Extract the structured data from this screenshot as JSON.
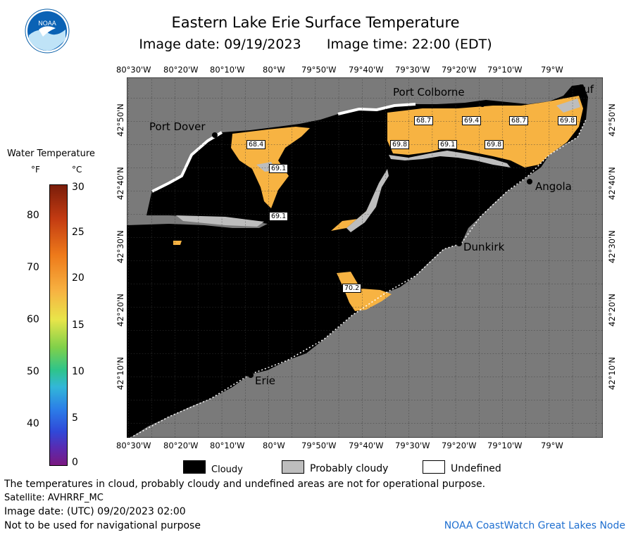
{
  "header": {
    "title": "Eastern Lake Erie Surface Temperature",
    "image_date_label": "Image date: 09/19/2023",
    "image_time_label": "Image time: 22:00 (EDT)",
    "logo_text": "NOAA"
  },
  "map": {
    "lon_labels_top": [
      "80°30'W",
      "80°20'W",
      "80°10'W",
      "80°W",
      "79°50'W",
      "79°40'W",
      "79°30'W",
      "79°20'W",
      "79°10'W",
      "79°W"
    ],
    "lon_labels_bottom": [
      "80°30'W",
      "80°20'W",
      "80°10'W",
      "80°W",
      "79°50'W",
      "79°40'W",
      "79°30'W",
      "79°20'W",
      "79°10'W",
      "79°W"
    ],
    "lat_labels_left": [
      "42°50'N",
      "42°40'N",
      "42°30'N",
      "42°20'N",
      "42°10'N"
    ],
    "lat_labels_right": [
      "42°50'N",
      "42°40'N",
      "42°30'N",
      "42°20'N",
      "42°10'N"
    ],
    "places": [
      {
        "name": "Port Colborne"
      },
      {
        "name": "Port Dover"
      },
      {
        "name": "Buf"
      },
      {
        "name": "Angola"
      },
      {
        "name": "Dunkirk"
      },
      {
        "name": "Erie"
      }
    ],
    "temps": [
      "68.7",
      "69.4",
      "68.7",
      "69.8",
      "68.4",
      "69.8",
      "69.1",
      "69.8",
      "69.1",
      "69.1",
      "70.2"
    ],
    "colors": {
      "land": "#7a7a7a",
      "cloud": "#000000",
      "water_warm": "#f7b342",
      "probably_cloudy": "#bdbdbd",
      "undefined": "#ffffff"
    }
  },
  "legend": {
    "title": "Water Temperature",
    "unit_f": "°F",
    "unit_c": "°C",
    "f_ticks": [
      "80",
      "70",
      "60",
      "50",
      "40"
    ],
    "c_ticks": [
      "30",
      "25",
      "20",
      "15",
      "10",
      "5",
      "0"
    ],
    "f_range": [
      32,
      86
    ],
    "c_range": [
      0,
      30
    ]
  },
  "key": {
    "cloudy": "Cloudy",
    "probably_cloudy": "Probably cloudy",
    "undefined": "Undefined"
  },
  "footer": {
    "disclaimer": "The temperatures in cloud, probably cloudy and undefined areas are not for operational purpose.",
    "satellite": "Satellite: AVHRRF_MC",
    "utc_date": "Image date: (UTC) 09/20/2023  02:00",
    "nav_warning": "Not to be used for navigational purpose",
    "credit": "NOAA CoastWatch Great Lakes Node"
  }
}
